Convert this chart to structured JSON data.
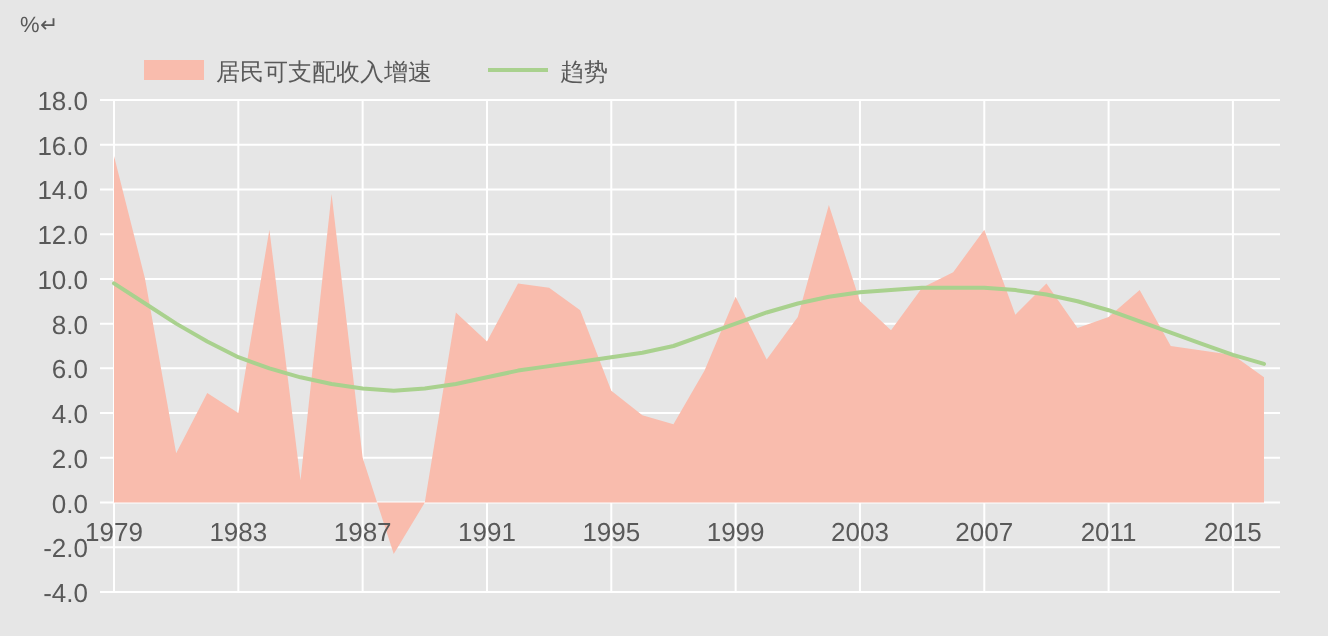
{
  "chart_data": {
    "type": "area",
    "ylabel": "%↵",
    "categories": [
      "1979",
      null,
      null,
      null,
      "1983",
      null,
      null,
      null,
      "1987",
      null,
      null,
      null,
      "1991",
      null,
      null,
      null,
      "1995",
      null,
      null,
      null,
      "1999",
      null,
      null,
      null,
      "2003",
      null,
      null,
      null,
      "2007",
      null,
      null,
      null,
      "2011",
      null,
      null,
      null,
      "2015",
      null
    ],
    "series": [
      {
        "name": "居民可支配收入增速",
        "type": "area",
        "color": "#f9bcad",
        "values": [
          15.5,
          10.0,
          2.2,
          4.9,
          4.0,
          12.2,
          1.0,
          13.8,
          2.0,
          -2.3,
          0.0,
          8.5,
          7.2,
          9.8,
          9.6,
          8.6,
          5.0,
          3.9,
          3.5,
          5.9,
          9.2,
          6.4,
          8.3,
          13.3,
          9.0,
          7.7,
          9.6,
          10.3,
          12.2,
          8.4,
          9.8,
          7.8,
          8.3,
          9.5,
          7.0,
          6.8,
          6.6,
          5.6
        ]
      },
      {
        "name": "趋势",
        "type": "line",
        "color": "#a9d18e",
        "values": [
          9.8,
          8.9,
          8.0,
          7.2,
          6.5,
          6.0,
          5.6,
          5.3,
          5.1,
          5.0,
          5.1,
          5.3,
          5.6,
          5.9,
          6.1,
          6.3,
          6.5,
          6.7,
          7.0,
          7.5,
          8.0,
          8.5,
          8.9,
          9.2,
          9.4,
          9.5,
          9.6,
          9.6,
          9.6,
          9.5,
          9.3,
          9.0,
          8.6,
          8.1,
          7.6,
          7.1,
          6.6,
          6.2
        ]
      }
    ],
    "ylim": [
      -4,
      18
    ],
    "yticks": [
      {
        "value": -4,
        "label": "-4.0"
      },
      {
        "value": -2,
        "label": "-2.0"
      },
      {
        "value": 0,
        "label": "0.0"
      },
      {
        "value": 2,
        "label": "2.0"
      },
      {
        "value": 4,
        "label": "4.0"
      },
      {
        "value": 6,
        "label": "6.0"
      },
      {
        "value": 8,
        "label": "8.0"
      },
      {
        "value": 10,
        "label": "10.0"
      },
      {
        "value": 12,
        "label": "12.0"
      },
      {
        "value": 14,
        "label": "14.0"
      },
      {
        "value": 16,
        "label": "16.0"
      },
      {
        "value": 18,
        "label": "18.0"
      }
    ],
    "grid": true,
    "legend": "top left"
  }
}
